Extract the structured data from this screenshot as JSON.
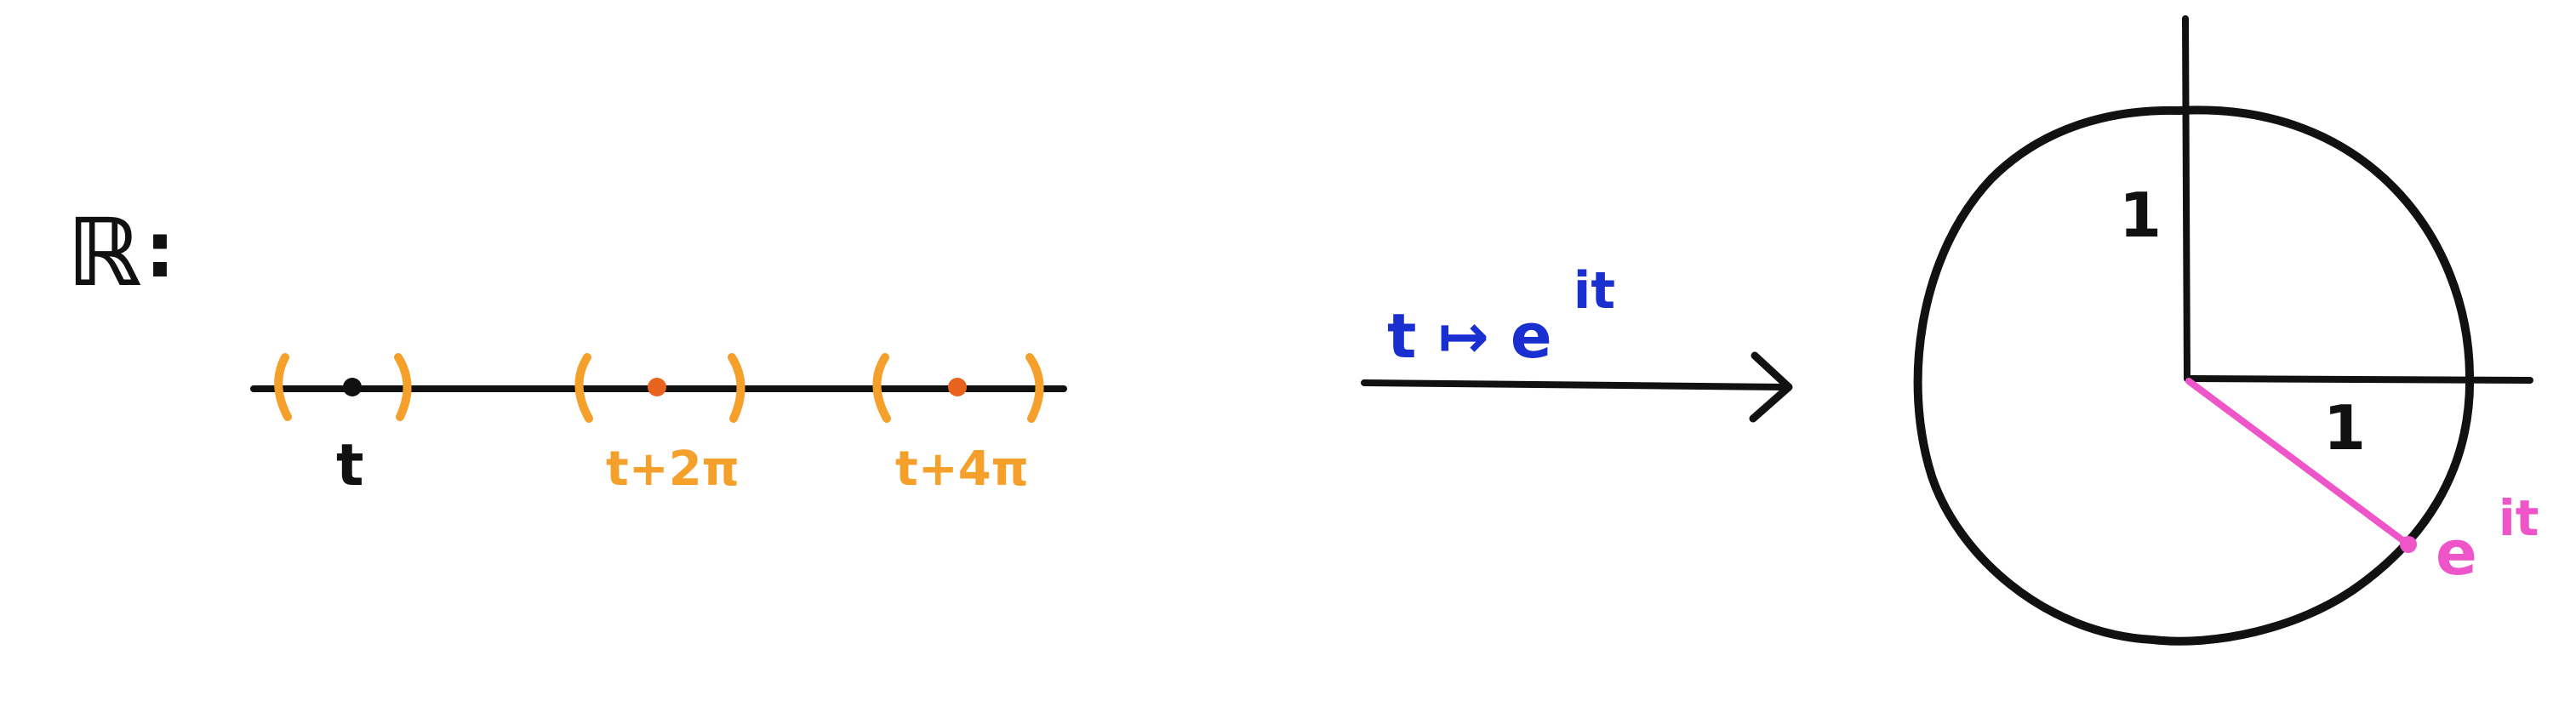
{
  "colors": {
    "ink": "#111111",
    "orange": "#f5a02a",
    "orange_point": "#e8641e",
    "blue": "#1a2fd0",
    "pink": "#ee55c8"
  },
  "left": {
    "set_label": "ℝ",
    "set_colon": ":",
    "point_t": "t",
    "point_t2pi": "t+2π",
    "point_t4pi": "t+4π"
  },
  "map": {
    "label_base": "t ↦ e",
    "label_sup": "it"
  },
  "circle": {
    "radius_label_vertical": "1",
    "radius_label_horizontal": "1",
    "point_label_base": "e",
    "point_label_sup": "it"
  }
}
